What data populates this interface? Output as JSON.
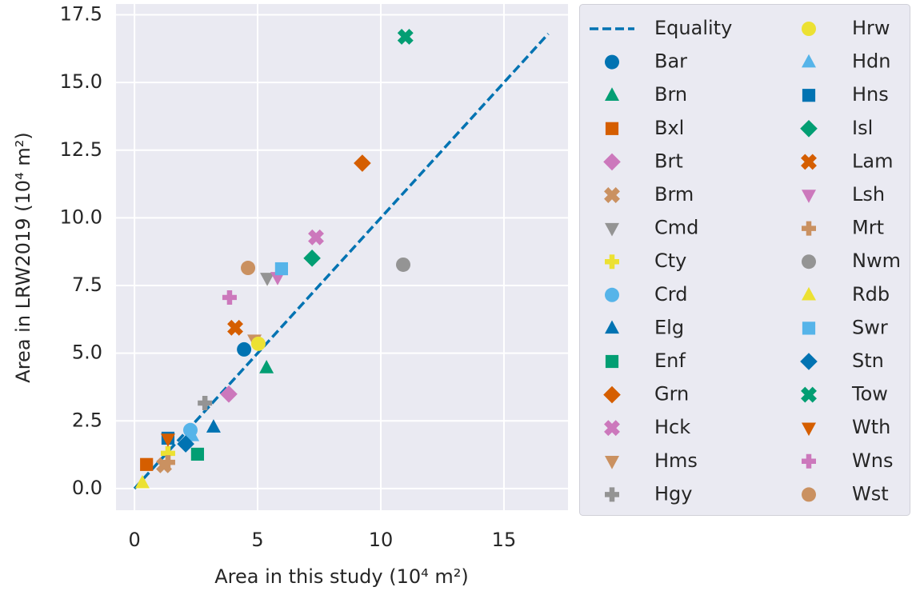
{
  "chart_data": {
    "type": "scatter",
    "xlabel": "Area in this study (10⁴ m²)",
    "ylabel": "Area in LRW2019 (10⁴ m²)",
    "xlim": [
      -0.75,
      17.6
    ],
    "ylim": [
      -0.8,
      17.9
    ],
    "xticks": [
      0,
      5,
      10,
      15
    ],
    "yticks": [
      {
        "value": 0,
        "label": "0.0"
      },
      2.5,
      {
        "value": 5,
        "label": "5.0"
      },
      7.5,
      {
        "value": 10,
        "label": "10.0"
      },
      12.5,
      {
        "value": 15,
        "label": "15.0"
      },
      17.5
    ],
    "grid": true,
    "legend": "outside right",
    "series": [
      {
        "name": "Equality",
        "color": "#0173b2",
        "style": "dashed",
        "x": [
          0,
          16.8
        ],
        "values": [
          0,
          16.8
        ]
      },
      {
        "name": "Bar",
        "color": "#0173b2",
        "marker": "circle",
        "x": [
          4.45
        ],
        "values": [
          5.14
        ]
      },
      {
        "name": "Brn",
        "color": "#029e73",
        "marker": "triangle-up",
        "x": [
          5.36
        ],
        "values": [
          4.46
        ]
      },
      {
        "name": "Bxl",
        "color": "#d55e00",
        "marker": "square",
        "x": [
          0.49
        ],
        "values": [
          0.89
        ]
      },
      {
        "name": "Brt",
        "color": "#cc78bc",
        "marker": "diamond",
        "x": [
          3.83
        ],
        "values": [
          3.49
        ]
      },
      {
        "name": "Brm",
        "color": "#ca9161",
        "marker": "x",
        "x": [
          1.2
        ],
        "values": [
          0.86
        ]
      },
      {
        "name": "Cmd",
        "color": "#949494",
        "marker": "triangle-down",
        "x": [
          5.39
        ],
        "values": [
          7.77
        ]
      },
      {
        "name": "Cty",
        "color": "#ece133",
        "marker": "plus",
        "x": [
          1.36
        ],
        "values": [
          1.3
        ]
      },
      {
        "name": "Crd",
        "color": "#56b4e9",
        "marker": "circle",
        "x": [
          2.27
        ],
        "values": [
          2.16
        ]
      },
      {
        "name": "Elg",
        "color": "#0173b2",
        "marker": "triangle-up",
        "x": [
          3.21
        ],
        "values": [
          2.27
        ]
      },
      {
        "name": "Enf",
        "color": "#029e73",
        "marker": "square",
        "x": [
          2.56
        ],
        "values": [
          1.27
        ]
      },
      {
        "name": "Grn",
        "color": "#d55e00",
        "marker": "diamond",
        "x": [
          9.25
        ],
        "values": [
          12.02
        ]
      },
      {
        "name": "Hck",
        "color": "#cc78bc",
        "marker": "x",
        "x": [
          7.37
        ],
        "values": [
          9.28
        ]
      },
      {
        "name": "Hms",
        "color": "#ca9161",
        "marker": "triangle-down",
        "x": [
          4.87
        ],
        "values": [
          5.49
        ]
      },
      {
        "name": "Hgy",
        "color": "#949494",
        "marker": "plus",
        "x": [
          2.86
        ],
        "values": [
          3.16
        ]
      },
      {
        "name": "Hrw",
        "color": "#ece133",
        "marker": "circle",
        "x": [
          5.03
        ],
        "values": [
          5.35
        ]
      },
      {
        "name": "Hdn",
        "color": "#56b4e9",
        "marker": "triangle-up",
        "x": [
          2.34
        ],
        "values": [
          1.95
        ]
      },
      {
        "name": "Hns",
        "color": "#0173b2",
        "marker": "square",
        "x": [
          1.36
        ],
        "values": [
          1.86
        ]
      },
      {
        "name": "Isl",
        "color": "#029e73",
        "marker": "diamond",
        "x": [
          7.21
        ],
        "values": [
          8.51
        ]
      },
      {
        "name": "Lam",
        "color": "#d55e00",
        "marker": "x",
        "x": [
          4.09
        ],
        "values": [
          5.94
        ]
      },
      {
        "name": "Lsh",
        "color": "#cc78bc",
        "marker": "triangle-down",
        "x": [
          5.81
        ],
        "values": [
          7.8
        ]
      },
      {
        "name": "Mrt",
        "color": "#ca9161",
        "marker": "plus",
        "x": [
          1.36
        ],
        "values": [
          0.97
        ]
      },
      {
        "name": "Nwm",
        "color": "#949494",
        "marker": "circle",
        "x": [
          10.91
        ],
        "values": [
          8.27
        ]
      },
      {
        "name": "Rdb",
        "color": "#ece133",
        "marker": "triangle-up",
        "x": [
          0.32
        ],
        "values": [
          0.21
        ]
      },
      {
        "name": "Swr",
        "color": "#56b4e9",
        "marker": "square",
        "x": [
          5.97
        ],
        "values": [
          8.12
        ]
      },
      {
        "name": "Stn",
        "color": "#0173b2",
        "marker": "diamond",
        "x": [
          2.08
        ],
        "values": [
          1.65
        ]
      },
      {
        "name": "Tow",
        "color": "#029e73",
        "marker": "x",
        "x": [
          11.0
        ],
        "values": [
          16.69
        ]
      },
      {
        "name": "Wth",
        "color": "#d55e00",
        "marker": "triangle-down",
        "x": [
          1.36
        ],
        "values": [
          1.83
        ]
      },
      {
        "name": "Wns",
        "color": "#cc78bc",
        "marker": "plus",
        "x": [
          3.86
        ],
        "values": [
          7.06
        ]
      },
      {
        "name": "Wst",
        "color": "#ca9161",
        "marker": "circle",
        "x": [
          4.61
        ],
        "values": [
          8.15
        ]
      }
    ]
  }
}
